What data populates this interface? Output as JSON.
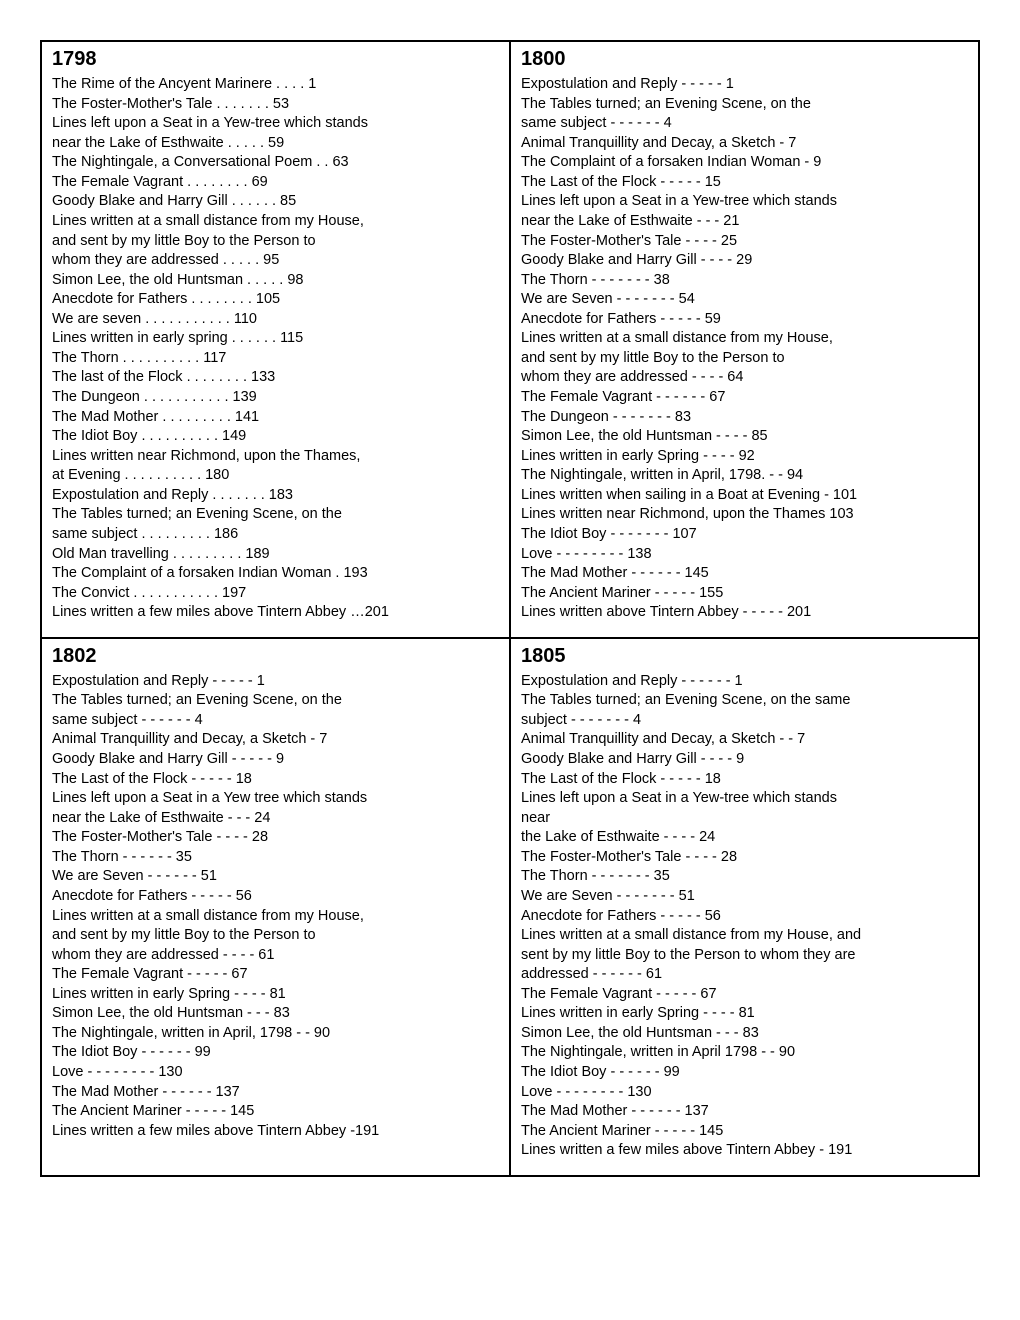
{
  "sections": [
    {
      "year": "1798",
      "lines": [
        "The Rime of the Ancyent Marinere . . . . 1",
        "The Foster-Mother's Tale . . . . . . . 53",
        "Lines left upon a Seat in a Yew-tree which stands",
        "near the Lake of Esthwaite . . . . . 59",
        "The Nightingale, a Conversational Poem . . 63",
        "The Female Vagrant . . . . . . . . 69",
        "Goody Blake and Harry Gill . . . . . . 85",
        "Lines written at a small distance from my House,",
        "and sent by my little Boy to the Person to",
        "whom they are addressed . . . . . 95",
        "Simon Lee, the old Huntsman . . . . . 98",
        "Anecdote for Fathers . . . . . . . . 105",
        "We are seven . . . . . . . . . . . 110",
        "Lines written in early spring . . . . . . 115",
        "The Thorn . . . . . . . . . . 117",
        "The last of the Flock . . . . . . . . 133",
        "The Dungeon . . . . . . . . . . . 139",
        "The Mad Mother . . . . . . . . . 141",
        "The Idiot Boy . . . . . . . . . . 149",
        "Lines written near Richmond, upon the Thames,",
        "at Evening . . . . . . . . . . 180",
        "Expostulation and Reply . . . . . . . 183",
        "The Tables turned; an Evening Scene, on the",
        "same subject . . . . . . . . . 186",
        "Old Man travelling . . . . . . . . . 189",
        "The Complaint of a forsaken Indian Woman . 193",
        "The Convict . . . . . . . . . . . 197",
        "Lines written a few miles above Tintern Abbey …201"
      ]
    },
    {
      "year": "1800",
      "lines": [
        "Expostulation and Reply - - - - - 1",
        "The Tables turned; an Evening Scene, on the",
        "same subject - - - - - - 4",
        "Animal Tranquillity and Decay, a Sketch - 7",
        "The Complaint of a forsaken Indian Woman - 9",
        "The Last of the Flock - - - - - 15",
        "Lines left upon a Seat in a Yew-tree which stands",
        "near the Lake of Esthwaite - - - 21",
        "The Foster-Mother's Tale - - - - 25",
        "Goody Blake and Harry Gill - - - - 29",
        "The Thorn - - - - - - - 38",
        "We are Seven - - - - - - - 54",
        "Anecdote for Fathers - - - - - 59",
        "Lines written at a small distance from my House,",
        "and sent by my little Boy to the Person to",
        "whom they are addressed - - - - 64",
        "The Female Vagrant - - - - - - 67",
        "The Dungeon - - - - - - - 83",
        "Simon Lee, the old Huntsman - - - - 85",
        "Lines written in early Spring - - - - 92",
        "The Nightingale, written in April, 1798. - - 94",
        "Lines written when sailing in a Boat at Evening - 101",
        "Lines written near Richmond, upon the Thames 103",
        "The Idiot Boy - - - - - - - 107",
        "Love - - - - - - - - 138",
        "The Mad Mother - - - - - - 145",
        "The Ancient Mariner - - - - - 155",
        "Lines written above Tintern Abbey - - - - - 201"
      ]
    },
    {
      "year": "1802",
      "lines": [
        "Expostulation and Reply - - - - - 1",
        "The Tables turned; an Evening Scene, on the",
        "same subject - - - - - - 4",
        "Animal Tranquillity and Decay, a Sketch - 7",
        "Goody Blake and Harry Gill - - - - - 9",
        "The Last of the Flock - - - - - 18",
        "Lines left upon a Seat in a Yew tree which stands",
        "near the Lake of Esthwaite - - - 24",
        "The Foster-Mother's Tale - - - - 28",
        "The Thorn - - - - - - 35",
        "We are Seven - - - - - - 51",
        "Anecdote for Fathers - - - - - 56",
        "Lines written at a small distance from my House,",
        "and sent by my little Boy to the Person to",
        "whom they are addressed - - - - 61",
        "The Female Vagrant - - - - - 67",
        "Lines written in early Spring - - - - 81",
        "Simon Lee, the old Huntsman - - - 83",
        "The Nightingale, written in April, 1798 - - 90",
        "The Idiot Boy - - - - - - 99",
        "Love - - - - - - - - 130",
        "The Mad Mother - - - - - - 137",
        "The Ancient Mariner - - - - - 145",
        "Lines written a few miles above Tintern Abbey -191"
      ]
    },
    {
      "year": "1805",
      "lines": [
        "Expostulation and Reply - - - - - - 1",
        "The Tables turned; an Evening Scene, on the same",
        "subject - - - - - - - 4",
        "Animal Tranquillity and Decay, a Sketch - - 7",
        "Goody Blake and Harry Gill - - - - 9",
        "The Last of the Flock - - - - - 18",
        "Lines left upon a Seat in a Yew-tree which stands",
        "near",
        "the Lake of Esthwaite - - - - 24",
        "The Foster-Mother's Tale - - - - 28",
        "The Thorn - - - - - - - 35",
        "We are Seven - - - - - - - 51",
        "Anecdote for Fathers - - - - - 56",
        "Lines written at a small distance from my House, and",
        "sent by my little Boy to the Person to whom they are",
        "addressed - - - - - - 61",
        "The Female Vagrant - - - - - 67",
        "Lines written in early Spring - - - - 81",
        "Simon Lee, the old Huntsman - - - 83",
        "The Nightingale, written in April 1798 - - 90",
        "The Idiot Boy - - - - - - 99",
        "Love - - - - - - - - 130",
        "The Mad Mother - - - - - - 137",
        "The Ancient Mariner - - - - - 145",
        "Lines written a few miles above Tintern Abbey - 191"
      ]
    }
  ]
}
